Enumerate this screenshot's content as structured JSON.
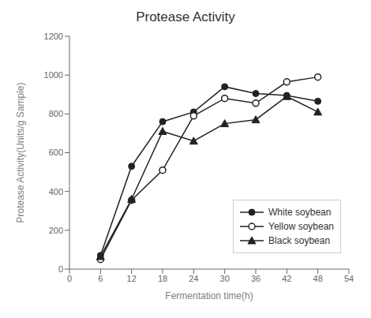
{
  "chart_data": {
    "type": "line",
    "title": "Protease Activity",
    "xlabel": "Fermentation time(h)",
    "ylabel": "Protease Activity(Units/g Sample)",
    "x": [
      6,
      12,
      18,
      24,
      30,
      36,
      42,
      48
    ],
    "series": [
      {
        "name": "White soybean",
        "color": "#222222",
        "marker": "circle",
        "values": [
          70,
          530,
          760,
          810,
          940,
          905,
          895,
          865
        ]
      },
      {
        "name": "Yellow soybean",
        "color": "#222222",
        "marker": "open_circle",
        "values": [
          50,
          355,
          510,
          790,
          880,
          855,
          965,
          990
        ]
      },
      {
        "name": "Black soybean",
        "color": "#222222",
        "marker": "triangle",
        "values": [
          65,
          360,
          710,
          660,
          750,
          770,
          890,
          810
        ]
      }
    ],
    "xlim": [
      0,
      54
    ],
    "ylim": [
      0,
      1200
    ],
    "xticks": [
      0,
      6,
      12,
      18,
      24,
      30,
      36,
      42,
      48,
      54
    ],
    "yticks": [
      0,
      200,
      400,
      600,
      800,
      1000,
      1200
    ],
    "grid": false,
    "legend": "lower right"
  }
}
